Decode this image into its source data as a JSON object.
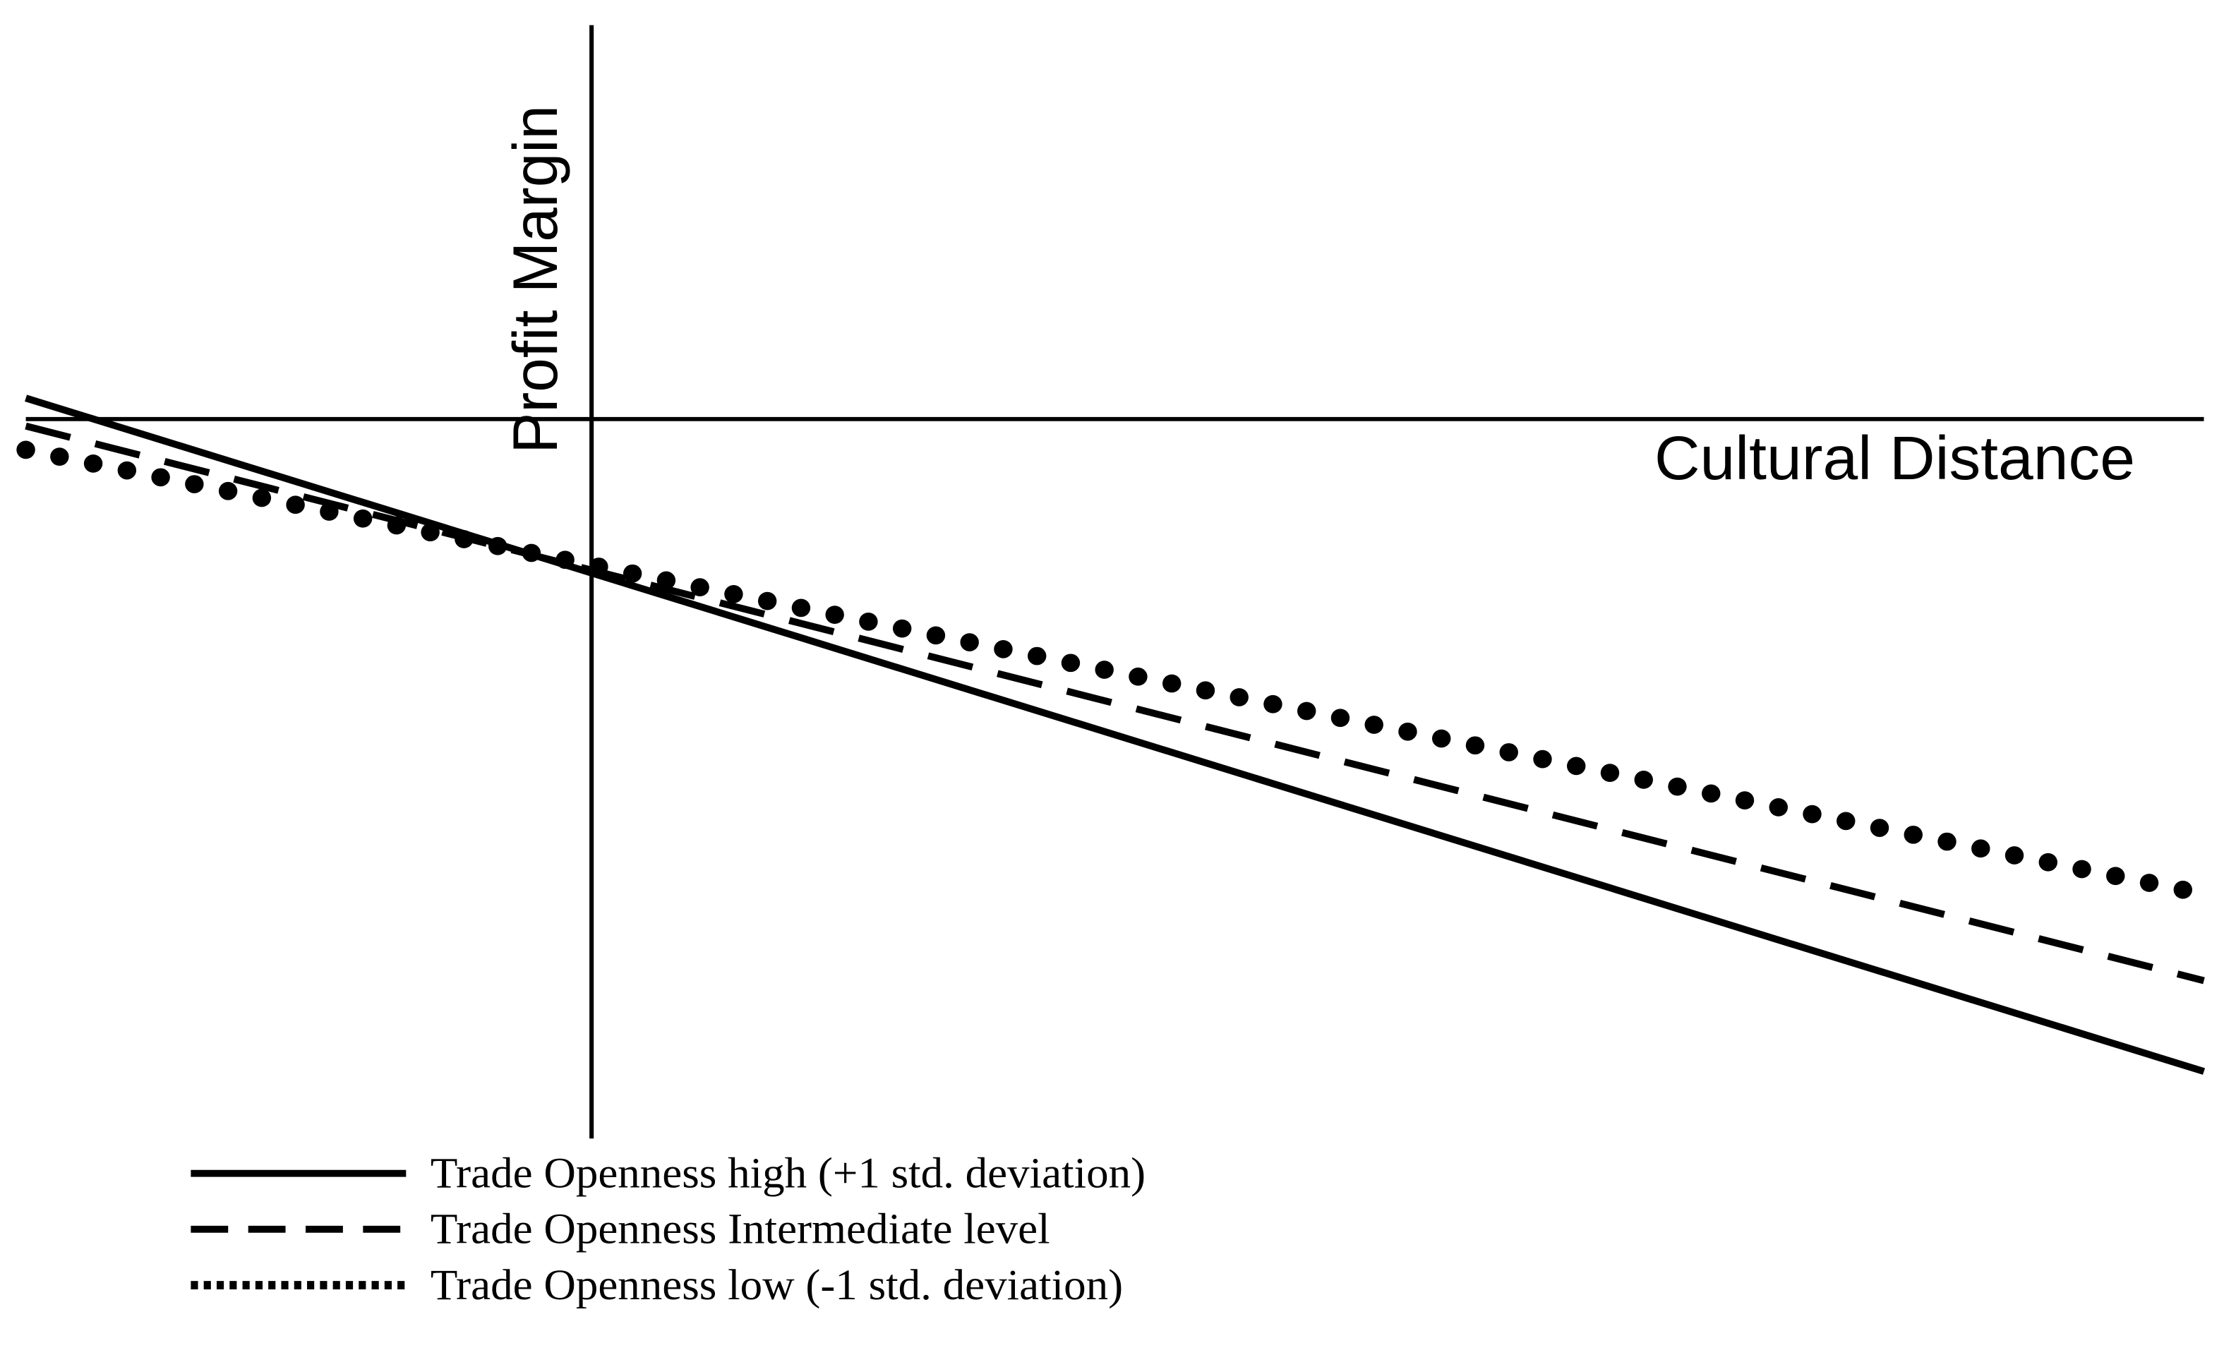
{
  "chart_data": {
    "type": "line",
    "xlabel": "Cultural Distance",
    "ylabel": "Profit Margin",
    "x": [
      -1,
      2.85
    ],
    "series": [
      {
        "name": "Trade Openness high (+1 std. deviation)",
        "color": "#000000",
        "style": "solid",
        "values": [
          0.15,
          -4.67
        ]
      },
      {
        "name": "Trade Openness Intermediate level",
        "color": "#000000",
        "style": "dashed",
        "values": [
          -0.05,
          -4.02
        ]
      },
      {
        "name": "Trade Openness low (-1 std. deviation)",
        "color": "#000000",
        "style": "dotted",
        "values": [
          -0.22,
          -3.4
        ]
      }
    ],
    "xlim": [
      -1,
      2.85
    ],
    "ylim": [
      -5.15,
      2.82
    ]
  }
}
